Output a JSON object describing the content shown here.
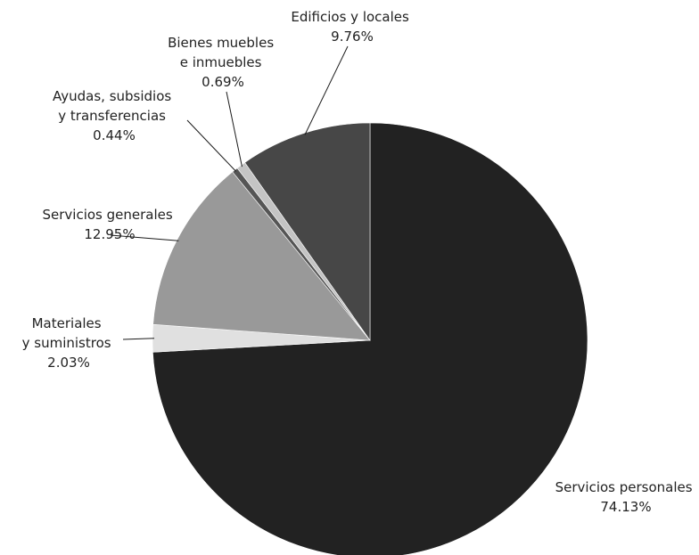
{
  "chart_data": {
    "type": "pie",
    "title": "",
    "start": "12 o'clock",
    "direction": "clockwise",
    "slices": [
      {
        "label": [
          "Servicios personales"
        ],
        "value_text": "74.13%",
        "value": 74.13,
        "color": "#222222"
      },
      {
        "label": [
          "Materiales",
          "y suministros"
        ],
        "value_text": "2.03%",
        "value": 2.03,
        "color": "#e0e0e0"
      },
      {
        "label": [
          "Servicios generales"
        ],
        "value_text": "12.95%",
        "value": 12.95,
        "color": "#999999"
      },
      {
        "label": [
          "Ayudas, subsidios",
          "y transferencias"
        ],
        "value_text": "0.44%",
        "value": 0.44,
        "color": "#555555"
      },
      {
        "label": [
          "Bienes muebles",
          "e inmuebles"
        ],
        "value_text": "0.69%",
        "value": 0.69,
        "color": "#c4c4c4"
      },
      {
        "label": [
          "Edificios y locales"
        ],
        "value_text": "9.76%",
        "value": 9.76,
        "color": "#474747"
      }
    ]
  }
}
